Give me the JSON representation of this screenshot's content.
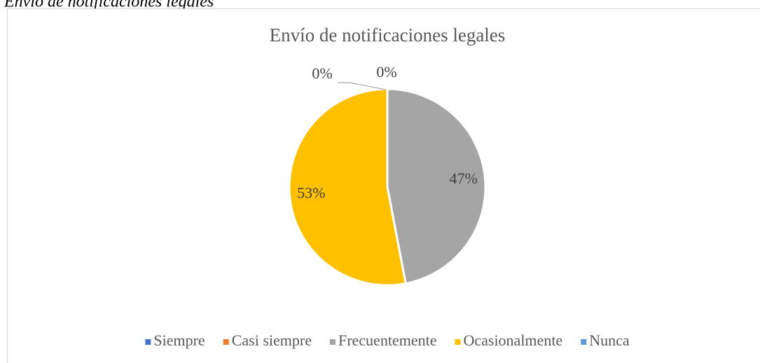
{
  "caption": "Envío de notificaciones legales",
  "chart_data": {
    "type": "pie",
    "title": "Envío de notificaciones legales",
    "categories": [
      "Siempre",
      "Casi siempre",
      "Frecuentemente",
      "Ocasionalmente",
      "Nunca"
    ],
    "values": [
      0,
      0,
      47,
      53,
      0
    ],
    "value_labels": [
      "0%",
      "0%",
      "47%",
      "53%",
      null
    ],
    "colors": [
      "#4472c4",
      "#ed7d31",
      "#a5a5a5",
      "#ffc000",
      "#5b9bd5"
    ],
    "legend": "bottom"
  }
}
